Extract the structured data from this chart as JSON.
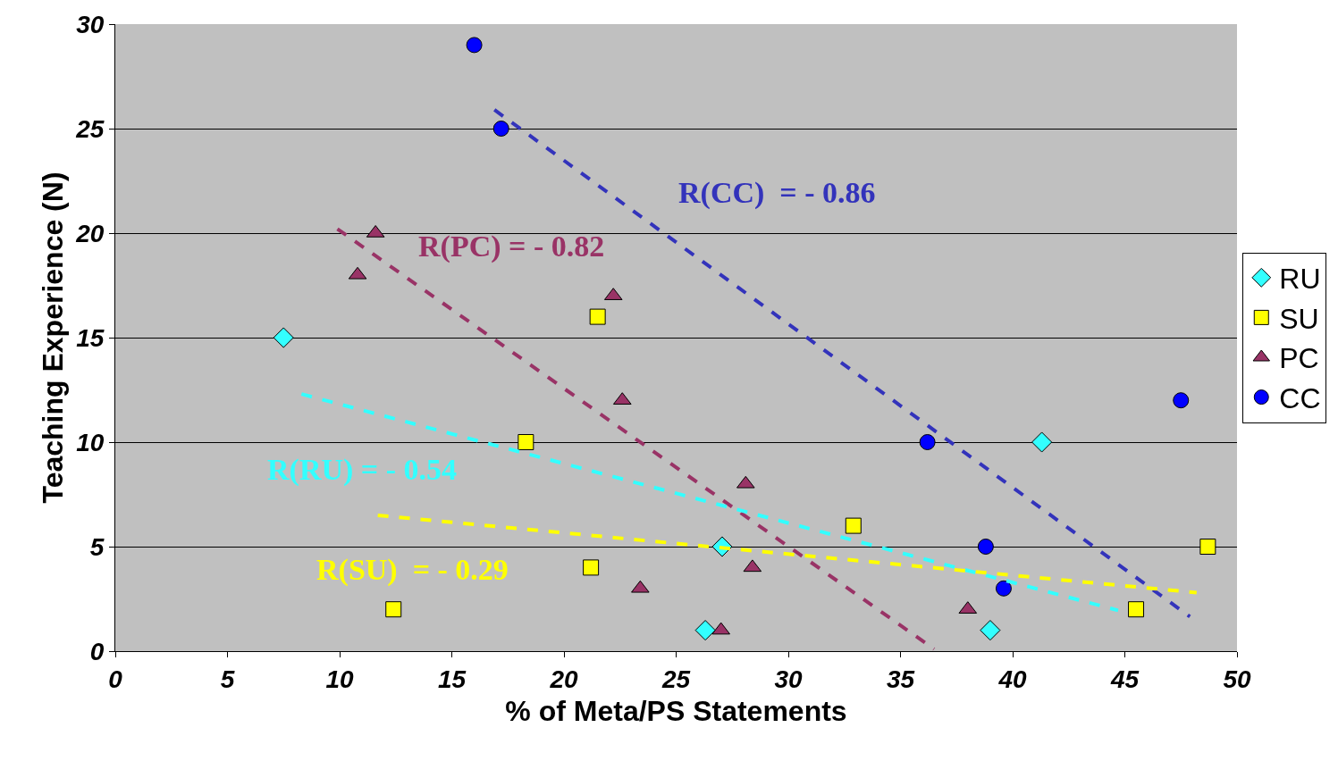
{
  "chart_data": {
    "type": "scatter",
    "xlabel": "% of Meta/PS Statements",
    "ylabel": "Teaching Experience (N)",
    "xlim": [
      0,
      50
    ],
    "xticks": [
      0,
      5,
      10,
      15,
      20,
      25,
      30,
      35,
      40,
      45,
      50
    ],
    "ylim": [
      0,
      30
    ],
    "yticks": [
      0,
      5,
      10,
      15,
      20,
      25,
      30
    ],
    "grid": "y",
    "legend": "right",
    "series": [
      {
        "name": "RU",
        "color": "#33ffff",
        "marker": "diamond",
        "x": [
          7.5,
          27.05,
          26.3,
          39.0,
          41.3
        ],
        "values": [
          15,
          5,
          1,
          1,
          10
        ]
      },
      {
        "name": "SU",
        "color": "#ffff00",
        "marker": "square",
        "x": [
          12.4,
          18.3,
          21.5,
          21.2,
          32.9,
          45.5,
          48.7
        ],
        "values": [
          2,
          10,
          16,
          4,
          6,
          2,
          5
        ]
      },
      {
        "name": "PC",
        "color": "#993366",
        "marker": "triangle",
        "x": [
          10.8,
          11.6,
          22.2,
          22.6,
          23.4,
          27.0,
          28.1,
          28.4,
          38.0
        ],
        "values": [
          18,
          20,
          17,
          12,
          3,
          1,
          8,
          4,
          2
        ]
      },
      {
        "name": "CC",
        "color": "#0000ff",
        "marker": "circle",
        "x": [
          16.0,
          17.2,
          36.2,
          38.8,
          39.6,
          47.5
        ],
        "values": [
          29,
          25,
          10,
          5,
          3,
          12
        ]
      },
      {
        "type": "line",
        "color": "#3333bb",
        "line_style": "dashed",
        "marker": "none",
        "x": [
          16.9,
          47.9
        ],
        "values": [
          25.9,
          1.65
        ]
      },
      {
        "type": "line",
        "color": "#993366",
        "line_style": "dashed",
        "marker": "none",
        "x": [
          9.9,
          36.5
        ],
        "values": [
          20.2,
          0.1
        ]
      },
      {
        "type": "line",
        "color": "#33ffff",
        "line_style": "dashed",
        "marker": "none",
        "x": [
          8.3,
          44.7
        ],
        "values": [
          12.3,
          1.95
        ]
      },
      {
        "type": "line",
        "color": "#ffff00",
        "line_style": "dashed",
        "marker": "none",
        "x": [
          11.7,
          48.2
        ],
        "values": [
          6.5,
          2.8
        ]
      }
    ],
    "annotations": [
      "R(CC)  = - 0.86",
      "R(PC) = - 0.82",
      "R(RU) = - 0.54",
      "R(SU)  = - 0.29"
    ]
  }
}
